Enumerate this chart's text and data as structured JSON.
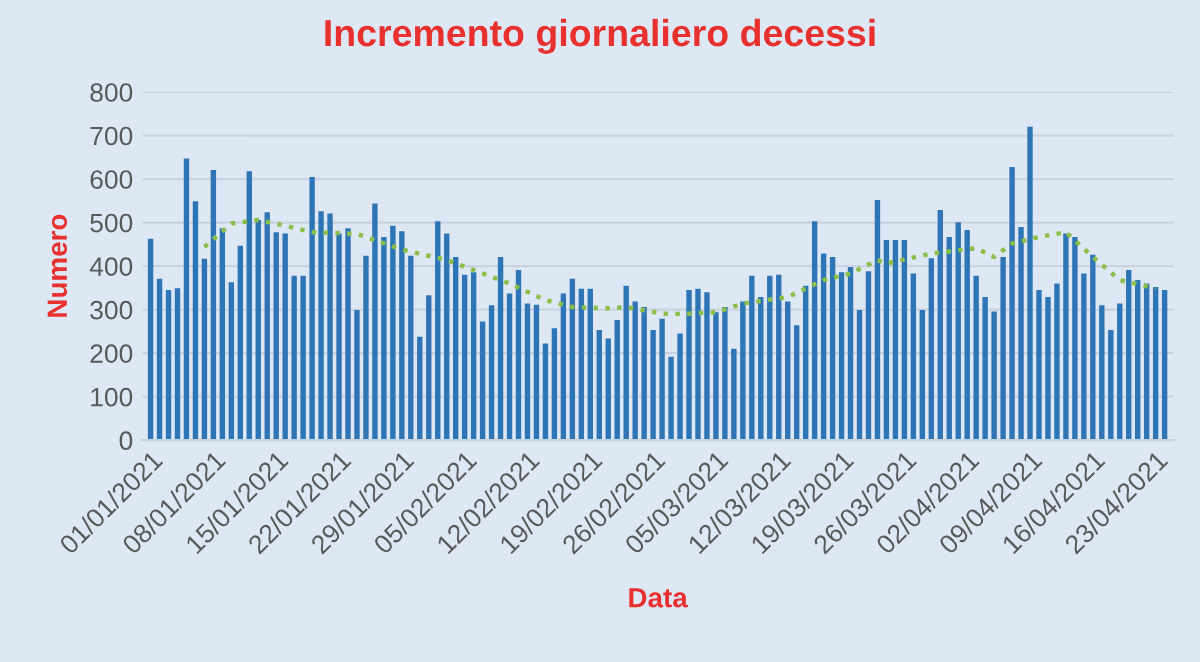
{
  "chart_data": {
    "type": "bar",
    "title": "Incremento giornaliero decessi",
    "xlabel": "Data",
    "ylabel": "Numero",
    "x": [
      "2021-01-01",
      "2021-01-02",
      "2021-01-03",
      "2021-01-04",
      "2021-01-05",
      "2021-01-06",
      "2021-01-07",
      "2021-01-08",
      "2021-01-09",
      "2021-01-10",
      "2021-01-11",
      "2021-01-12",
      "2021-01-13",
      "2021-01-14",
      "2021-01-15",
      "2021-01-16",
      "2021-01-17",
      "2021-01-18",
      "2021-01-19",
      "2021-01-20",
      "2021-01-21",
      "2021-01-22",
      "2021-01-23",
      "2021-01-24",
      "2021-01-25",
      "2021-01-26",
      "2021-01-27",
      "2021-01-28",
      "2021-01-29",
      "2021-01-30",
      "2021-01-31",
      "2021-02-01",
      "2021-02-02",
      "2021-02-03",
      "2021-02-04",
      "2021-02-05",
      "2021-02-06",
      "2021-02-07",
      "2021-02-08",
      "2021-02-09",
      "2021-02-10",
      "2021-02-11",
      "2021-02-12",
      "2021-02-13",
      "2021-02-14",
      "2021-02-15",
      "2021-02-16",
      "2021-02-17",
      "2021-02-18",
      "2021-02-19",
      "2021-02-20",
      "2021-02-21",
      "2021-02-22",
      "2021-02-23",
      "2021-02-24",
      "2021-02-25",
      "2021-02-26",
      "2021-02-27",
      "2021-02-28",
      "2021-03-01",
      "2021-03-02",
      "2021-03-03",
      "2021-03-04",
      "2021-03-05",
      "2021-03-06",
      "2021-03-07",
      "2021-03-08",
      "2021-03-09",
      "2021-03-10",
      "2021-03-11",
      "2021-03-12",
      "2021-03-13",
      "2021-03-14",
      "2021-03-15",
      "2021-03-16",
      "2021-03-17",
      "2021-03-18",
      "2021-03-19",
      "2021-03-20",
      "2021-03-21",
      "2021-03-22",
      "2021-03-23",
      "2021-03-24",
      "2021-03-25",
      "2021-03-26",
      "2021-03-27",
      "2021-03-28",
      "2021-03-29",
      "2021-03-30",
      "2021-03-31",
      "2021-04-01",
      "2021-04-02",
      "2021-04-03",
      "2021-04-04",
      "2021-04-05",
      "2021-04-06",
      "2021-04-07",
      "2021-04-08",
      "2021-04-09",
      "2021-04-10",
      "2021-04-11",
      "2021-04-12",
      "2021-04-13",
      "2021-04-14",
      "2021-04-15",
      "2021-04-16",
      "2021-04-17",
      "2021-04-18",
      "2021-04-19",
      "2021-04-20",
      "2021-04-21",
      "2021-04-22",
      "2021-04-23",
      "2021-04-24"
    ],
    "series": [
      {
        "color": "#2e75b6",
        "values": [
          463,
          371,
          345,
          349,
          647,
          549,
          417,
          621,
          487,
          363,
          447,
          618,
          506,
          524,
          478,
          475,
          378,
          378,
          605,
          526,
          521,
          475,
          487,
          299,
          424,
          544,
          467,
          493,
          480,
          424,
          238,
          333,
          503,
          475,
          421,
          380,
          386,
          273,
          310,
          421,
          337,
          391,
          314,
          311,
          222,
          257,
          337,
          371,
          348,
          348,
          253,
          234,
          276,
          355,
          319,
          306,
          253,
          279,
          192,
          245,
          345,
          348,
          340,
          294,
          306,
          210,
          319,
          378,
          329,
          378,
          380,
          319,
          264,
          355,
          503,
          429,
          421,
          386,
          398,
          299,
          388,
          552,
          460,
          460,
          460,
          383,
          299,
          418,
          529,
          467,
          501,
          483,
          378,
          329,
          296,
          421,
          628,
          490,
          720,
          345,
          329,
          360,
          475,
          467,
          383,
          426,
          310,
          253,
          314,
          391,
          368,
          360,
          352,
          345
        ]
      },
      {
        "type": "line",
        "color": "#8cbf4a",
        "line_style": "dotted",
        "marker": "none",
        "x": [
          "2021-01-07",
          "2021-01-10",
          "2021-01-13",
          "2021-01-16",
          "2021-01-19",
          "2021-01-24",
          "2021-01-25",
          "2021-01-29",
          "2021-02-03",
          "2021-02-06",
          "2021-02-10",
          "2021-02-14",
          "2021-02-17",
          "2021-02-21",
          "2021-02-23",
          "2021-02-27",
          "2021-03-01",
          "2021-03-05",
          "2021-03-08",
          "2021-03-13",
          "2021-03-17",
          "2021-03-20",
          "2021-03-23",
          "2021-03-24",
          "2021-03-29",
          "2021-04-03",
          "2021-04-05",
          "2021-04-07",
          "2021-04-10",
          "2021-04-13",
          "2021-04-16",
          "2021-04-19",
          "2021-04-23"
        ],
        "values": [
          444,
          498,
          506,
          493,
          478,
          474,
          467,
          438,
          414,
          391,
          360,
          322,
          306,
          303,
          306,
          291,
          290,
          294,
          314,
          329,
          368,
          383,
          414,
          406,
          429,
          441,
          421,
          452,
          467,
          478,
          421,
          368,
          349
        ]
      }
    ],
    "xlim": [
      "2020-12-31",
      "2021-04-25"
    ],
    "xticks": [
      {
        "value": "2021-01-01",
        "label": "01/01/2021"
      },
      {
        "value": "2021-01-08",
        "label": "08/01/2021"
      },
      {
        "value": "2021-01-15",
        "label": "15/01/2021"
      },
      {
        "value": "2021-01-22",
        "label": "22/01/2021"
      },
      {
        "value": "2021-01-29",
        "label": "29/01/2021"
      },
      {
        "value": "2021-02-05",
        "label": "05/02/2021"
      },
      {
        "value": "2021-02-12",
        "label": "12/02/2021"
      },
      {
        "value": "2021-02-19",
        "label": "19/02/2021"
      },
      {
        "value": "2021-02-26",
        "label": "26/02/2021"
      },
      {
        "value": "2021-03-05",
        "label": "05/03/2021"
      },
      {
        "value": "2021-03-12",
        "label": "12/03/2021"
      },
      {
        "value": "2021-03-19",
        "label": "19/03/2021"
      },
      {
        "value": "2021-03-26",
        "label": "26/03/2021"
      },
      {
        "value": "2021-04-02",
        "label": "02/04/2021"
      },
      {
        "value": "2021-04-09",
        "label": "09/04/2021"
      },
      {
        "value": "2021-04-16",
        "label": "16/04/2021"
      },
      {
        "value": "2021-04-23",
        "label": "23/04/2021"
      }
    ],
    "ylim": [
      0,
      800
    ],
    "yticks": [
      0,
      100,
      200,
      300,
      400,
      500,
      600,
      700,
      800
    ],
    "grid": "y",
    "legend": false
  }
}
